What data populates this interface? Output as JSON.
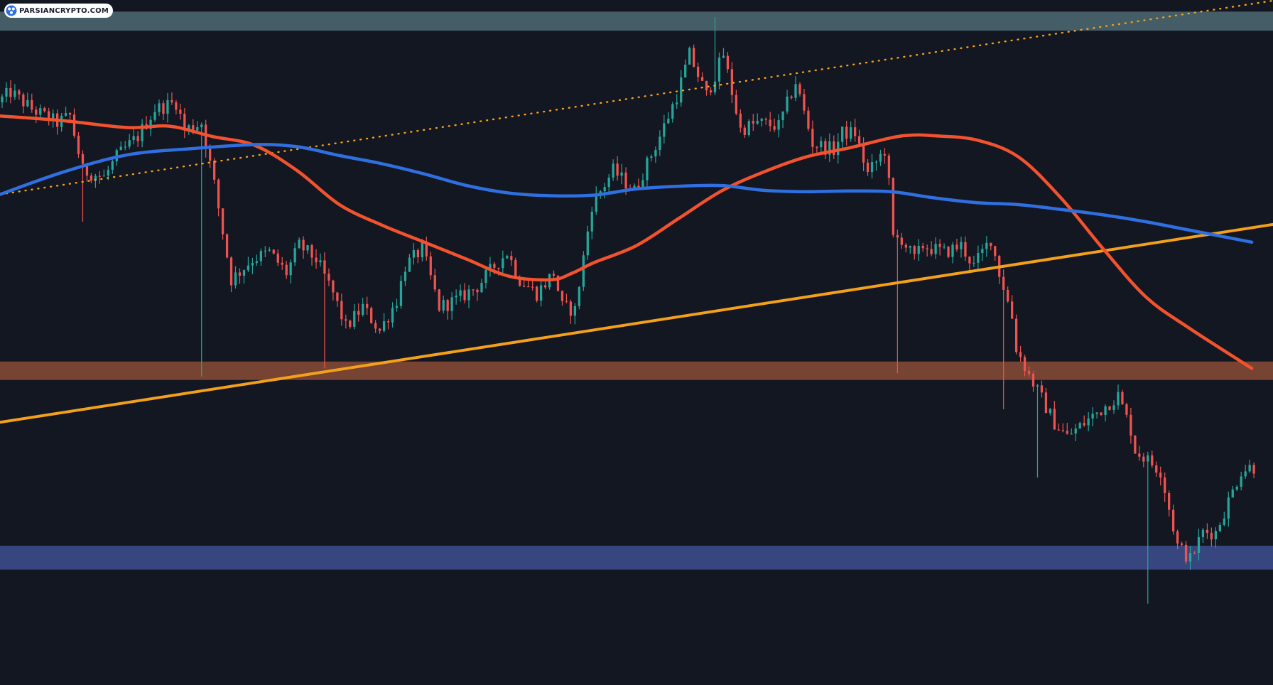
{
  "watermark": {
    "text": "PARSIANCRYPTO.COM",
    "logo_icon": "parsiancrypto-logo-icon"
  },
  "colors": {
    "background": "#131722",
    "bullish_candle": "#26a69a",
    "bearish_candle": "#ef5350",
    "sma_fast": "#f2522e",
    "sma_slow": "#2f6fe0",
    "trendline": "#f4a01b",
    "zone_top": "#4e6a73",
    "zone_middle": "#8a4b35",
    "zone_bottom": "#3f4f91"
  },
  "chart_data": {
    "type": "candlestick",
    "title": "",
    "xlabel": "",
    "ylabel": "",
    "x_index_range": [
      0,
      300
    ],
    "y_price_range": [
      0,
      100
    ],
    "grid": false,
    "legend": "none",
    "zones": [
      {
        "name": "resistance-zone",
        "low": 95.5,
        "high": 98.3,
        "color": "#4e6a73"
      },
      {
        "name": "support-zone-middle",
        "low": 44.3,
        "high": 47.0,
        "color": "#8a4b35"
      },
      {
        "name": "support-zone-bottom",
        "low": 16.5,
        "high": 20.0,
        "color": "#3f4f91"
      }
    ],
    "trendlines": [
      {
        "name": "rising-trendline",
        "style": "solid",
        "x1": 0,
        "y1": 38.1,
        "x2": 300,
        "y2": 67.1
      },
      {
        "name": "upper-channel-line",
        "style": "dotted",
        "x1": 0,
        "y1": 71.5,
        "x2": 300,
        "y2": 99.9
      }
    ],
    "moving_averages": [
      {
        "name": "fast-ma",
        "color": "#f2522e",
        "x": [
          0,
          15,
          30,
          40,
          50,
          60,
          70,
          80,
          90,
          100,
          110,
          120,
          130,
          135,
          140,
          150,
          160,
          170,
          180,
          190,
          200,
          210,
          215,
          220,
          230,
          240,
          250,
          260,
          270,
          280,
          295
        ],
        "y": [
          83.0,
          82.3,
          81.3,
          81.5,
          80.0,
          78.7,
          75.0,
          70.0,
          67.0,
          64.5,
          62.0,
          59.5,
          59.0,
          60.0,
          61.5,
          64.0,
          68.0,
          72.0,
          74.8,
          77.0,
          78.3,
          79.8,
          80.2,
          80.1,
          79.5,
          77.0,
          71.0,
          63.5,
          56.5,
          52.0,
          46.0
        ]
      },
      {
        "name": "slow-ma",
        "color": "#2f6fe0",
        "x": [
          0,
          15,
          30,
          45,
          60,
          70,
          80,
          90,
          100,
          110,
          120,
          130,
          140,
          150,
          160,
          170,
          180,
          190,
          200,
          210,
          220,
          230,
          240,
          250,
          260,
          270,
          280,
          295
        ],
        "y": [
          71.5,
          74.8,
          77.3,
          78.2,
          78.8,
          78.5,
          77.2,
          76.0,
          74.5,
          72.8,
          71.7,
          71.3,
          71.4,
          72.3,
          72.7,
          72.8,
          72.1,
          71.9,
          72.0,
          71.9,
          71.0,
          70.3,
          70.0,
          69.3,
          68.5,
          67.5,
          66.3,
          64.5
        ]
      }
    ],
    "candles": [],
    "candle_path_anchors": {
      "x": [
        0,
        3,
        8,
        14,
        17,
        20,
        25,
        28,
        33,
        37,
        42,
        44,
        48,
        49,
        51,
        55,
        60,
        64,
        68,
        71,
        75,
        79,
        82,
        86,
        90,
        94,
        96,
        100,
        104,
        108,
        113,
        117,
        120,
        123,
        127,
        131,
        133,
        136,
        140,
        145,
        150,
        156,
        160,
        163,
        167,
        171,
        175,
        179,
        184,
        188,
        192,
        197,
        199,
        202,
        205,
        209,
        210,
        211,
        213,
        216,
        218,
        223,
        227,
        230,
        234,
        236,
        237,
        239,
        240,
        243,
        249,
        252,
        256,
        260,
        264,
        267,
        268,
        274,
        278,
        281,
        284,
        287,
        293,
        295
      ],
      "close": [
        85.0,
        86.5,
        84.0,
        82.0,
        83.0,
        75.0,
        74.0,
        77.0,
        80.0,
        84.0,
        85.0,
        81.0,
        82.0,
        79.0,
        73.0,
        59.0,
        62.0,
        63.0,
        60.0,
        64.0,
        62.0,
        57.0,
        52.0,
        55.0,
        51.5,
        56.0,
        61.0,
        63.5,
        55.0,
        56.0,
        58.0,
        61.0,
        63.0,
        59.0,
        57.0,
        60.0,
        55.0,
        54.5,
        70.0,
        75.0,
        72.0,
        80.0,
        86.0,
        92.0,
        86.0,
        92.0,
        81.0,
        82.0,
        81.5,
        88.0,
        79.0,
        78.0,
        80.5,
        80.5,
        74.5,
        78.0,
        73.0,
        65.0,
        65.0,
        62.0,
        64.0,
        63.0,
        64.0,
        61.0,
        65.0,
        60.0,
        58.0,
        53.5,
        49.0,
        45.0,
        38.0,
        36.0,
        38.0,
        40.0,
        42.0,
        37.0,
        34.0,
        31.0,
        20.0,
        18.0,
        22.0,
        22.0,
        31.0,
        31.5
      ]
    }
  }
}
